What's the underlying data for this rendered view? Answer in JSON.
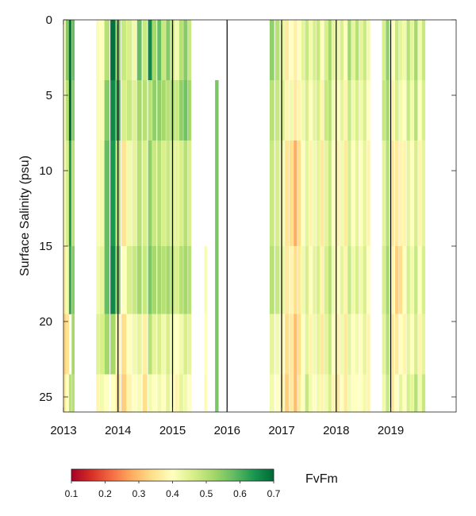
{
  "chart_data": {
    "type": "heatmap",
    "title": "",
    "xlabel": "",
    "ylabel": "Surface Salinity (psu)",
    "x_ticks": [
      "2013",
      "2014",
      "2015",
      "2016",
      "2017",
      "2018",
      "2019"
    ],
    "x_tick_values": [
      2013,
      2014,
      2015,
      2016,
      2017,
      2018,
      2019
    ],
    "xlim": [
      2013,
      2020.2
    ],
    "y_ticks": [
      "0",
      "5",
      "10",
      "15",
      "20",
      "25"
    ],
    "y_tick_values": [
      0,
      5,
      10,
      15,
      20,
      25
    ],
    "ylim": [
      0,
      26
    ],
    "y_reversed": true,
    "year_boundary_lines": [
      2014,
      2015,
      2016,
      2017,
      2018,
      2019
    ],
    "colorbar": {
      "label": "FvFm",
      "min": 0.1,
      "max": 0.7,
      "ticks": [
        "0.1",
        "0.2",
        "0.3",
        "0.4",
        "0.5",
        "0.6",
        "0.7"
      ],
      "colormap": [
        "#a50026",
        "#d73027",
        "#f46d43",
        "#fdae61",
        "#fee08b",
        "#ffffbf",
        "#d9ef8b",
        "#a6d96a",
        "#66bd63",
        "#1a9850",
        "#006837"
      ]
    },
    "salinity_bins": [
      0,
      4,
      8,
      15,
      19.5,
      23.5,
      26
    ],
    "columns": [
      {
        "t": 2013.0,
        "w": 0.04,
        "v": [
          0.4,
          0.4,
          0.39,
          0.36,
          0.32,
          0.35
        ]
      },
      {
        "t": 2013.04,
        "w": 0.06,
        "v": [
          0.55,
          0.5,
          0.46,
          0.42,
          0.35,
          0.4
        ]
      },
      {
        "t": 2013.1,
        "w": 0.04,
        "v": [
          0.69,
          0.7,
          0.64,
          0.62,
          null,
          0.5
        ]
      },
      {
        "t": 2013.15,
        "w": 0.05,
        "v": [
          0.58,
          0.55,
          0.5,
          0.55,
          0.52,
          0.5
        ]
      },
      {
        "t": 2013.6,
        "w": 0.05,
        "v": [
          0.41,
          0.41,
          0.41,
          0.42,
          0.45,
          0.38
        ]
      },
      {
        "t": 2013.66,
        "w": 0.08,
        "v": [
          0.4,
          0.41,
          0.42,
          0.44,
          0.46,
          0.42
        ]
      },
      {
        "t": 2013.75,
        "w": 0.09,
        "v": [
          0.5,
          0.55,
          0.58,
          0.58,
          0.52,
          0.4
        ]
      },
      {
        "t": 2013.86,
        "w": 0.09,
        "v": [
          0.69,
          0.66,
          0.64,
          0.66,
          0.52,
          0.4
        ]
      },
      {
        "t": 2013.96,
        "w": 0.08,
        "v": [
          0.55,
          0.6,
          0.5,
          0.55,
          0.38,
          0.35
        ]
      },
      {
        "t": 2014.06,
        "w": 0.09,
        "v": [
          0.48,
          0.46,
          0.35,
          0.4,
          0.34,
          0.32
        ]
      },
      {
        "t": 2014.16,
        "w": 0.09,
        "v": [
          0.46,
          0.48,
          0.42,
          0.46,
          0.4,
          0.38
        ]
      },
      {
        "t": 2014.26,
        "w": 0.08,
        "v": [
          0.42,
          0.45,
          0.44,
          0.48,
          0.42,
          0.4
        ]
      },
      {
        "t": 2014.35,
        "w": 0.08,
        "v": [
          0.58,
          0.52,
          0.5,
          0.52,
          0.44,
          0.41
        ]
      },
      {
        "t": 2014.45,
        "w": 0.08,
        "v": [
          0.48,
          0.5,
          0.46,
          0.48,
          0.37,
          0.34
        ]
      },
      {
        "t": 2014.55,
        "w": 0.07,
        "v": [
          0.66,
          0.5,
          0.54,
          0.56,
          0.5,
          0.42
        ]
      },
      {
        "t": 2014.63,
        "w": 0.07,
        "v": [
          0.52,
          0.54,
          0.48,
          0.52,
          0.44,
          0.4
        ]
      },
      {
        "t": 2014.72,
        "w": 0.07,
        "v": [
          0.58,
          0.54,
          0.5,
          0.52,
          0.46,
          0.42
        ]
      },
      {
        "t": 2014.8,
        "w": 0.07,
        "v": [
          0.48,
          0.52,
          0.46,
          0.5,
          0.42,
          0.4
        ]
      },
      {
        "t": 2014.88,
        "w": 0.07,
        "v": [
          0.55,
          0.5,
          0.48,
          0.52,
          0.46,
          0.44
        ]
      },
      {
        "t": 2014.96,
        "w": 0.07,
        "v": [
          0.48,
          0.52,
          0.46,
          0.5,
          0.42,
          0.4
        ]
      },
      {
        "t": 2015.04,
        "w": 0.07,
        "v": [
          0.42,
          0.48,
          0.44,
          0.46,
          0.4,
          0.38
        ]
      },
      {
        "t": 2015.12,
        "w": 0.07,
        "v": [
          0.5,
          0.54,
          0.46,
          0.5,
          0.42,
          0.44
        ]
      },
      {
        "t": 2015.2,
        "w": 0.07,
        "v": [
          0.55,
          0.57,
          0.5,
          0.52,
          0.46,
          0.42
        ]
      },
      {
        "t": 2015.28,
        "w": 0.06,
        "v": [
          0.48,
          0.52,
          0.46,
          0.5,
          0.44,
          0.4
        ]
      },
      {
        "t": 2015.58,
        "w": 0.05,
        "v": [
          null,
          null,
          null,
          0.41,
          0.4,
          0.39
        ]
      },
      {
        "t": 2015.78,
        "w": 0.06,
        "v": [
          null,
          0.56,
          0.56,
          0.56,
          0.56,
          0.56
        ]
      },
      {
        "t": 2016.78,
        "w": 0.08,
        "v": [
          0.54,
          0.5,
          0.48,
          0.5,
          0.44,
          0.42
        ]
      },
      {
        "t": 2016.88,
        "w": 0.08,
        "v": [
          0.5,
          0.48,
          0.46,
          0.48,
          0.42,
          0.4
        ]
      },
      {
        "t": 2016.98,
        "w": 0.07,
        "v": [
          0.44,
          0.46,
          0.42,
          0.44,
          0.4,
          0.38
        ]
      },
      {
        "t": 2017.06,
        "w": 0.07,
        "v": [
          0.36,
          0.38,
          0.35,
          0.36,
          0.34,
          0.32
        ]
      },
      {
        "t": 2017.14,
        "w": 0.07,
        "v": [
          0.4,
          0.42,
          0.34,
          0.38,
          0.36,
          0.36
        ]
      },
      {
        "t": 2017.22,
        "w": 0.06,
        "v": [
          0.37,
          0.36,
          0.28,
          0.34,
          0.3,
          0.3
        ]
      },
      {
        "t": 2017.29,
        "w": 0.06,
        "v": [
          0.4,
          0.38,
          0.34,
          0.36,
          0.34,
          0.36
        ]
      },
      {
        "t": 2017.36,
        "w": 0.06,
        "v": [
          0.44,
          0.42,
          0.4,
          0.42,
          0.4,
          0.4
        ]
      },
      {
        "t": 2017.43,
        "w": 0.06,
        "v": [
          0.48,
          0.46,
          0.44,
          0.46,
          0.44,
          0.48
        ]
      },
      {
        "t": 2017.5,
        "w": 0.06,
        "v": [
          0.42,
          0.4,
          0.38,
          0.4,
          0.38,
          0.42
        ]
      },
      {
        "t": 2017.57,
        "w": 0.06,
        "v": [
          0.46,
          0.44,
          0.42,
          0.44,
          0.42,
          0.4
        ]
      },
      {
        "t": 2017.64,
        "w": 0.06,
        "v": [
          0.48,
          0.46,
          0.44,
          0.46,
          0.44,
          0.42
        ]
      },
      {
        "t": 2017.71,
        "w": 0.06,
        "v": [
          0.4,
          0.38,
          0.36,
          0.38,
          0.36,
          0.38
        ]
      },
      {
        "t": 2017.78,
        "w": 0.06,
        "v": [
          0.46,
          0.48,
          0.44,
          0.46,
          0.44,
          0.42
        ]
      },
      {
        "t": 2017.85,
        "w": 0.06,
        "v": [
          0.52,
          0.5,
          0.48,
          0.5,
          0.48,
          0.46
        ]
      },
      {
        "t": 2017.92,
        "w": 0.06,
        "v": [
          0.44,
          0.42,
          0.4,
          0.42,
          0.4,
          0.38
        ]
      },
      {
        "t": 2018.0,
        "w": 0.06,
        "v": [
          0.42,
          0.4,
          0.38,
          0.4,
          0.38,
          0.36
        ]
      },
      {
        "t": 2018.07,
        "w": 0.06,
        "v": [
          0.46,
          0.44,
          0.42,
          0.44,
          0.42,
          0.4
        ]
      },
      {
        "t": 2018.14,
        "w": 0.06,
        "v": [
          0.4,
          0.38,
          0.36,
          0.38,
          0.36,
          0.36
        ]
      },
      {
        "t": 2018.21,
        "w": 0.06,
        "v": [
          0.52,
          0.48,
          0.46,
          0.48,
          0.44,
          0.42
        ]
      },
      {
        "t": 2018.28,
        "w": 0.06,
        "v": [
          0.44,
          0.42,
          0.4,
          0.42,
          0.4,
          0.4
        ]
      },
      {
        "t": 2018.35,
        "w": 0.06,
        "v": [
          0.5,
          0.46,
          0.44,
          0.46,
          0.42,
          0.4
        ]
      },
      {
        "t": 2018.42,
        "w": 0.06,
        "v": [
          0.44,
          0.42,
          0.4,
          0.42,
          0.4,
          0.4
        ]
      },
      {
        "t": 2018.49,
        "w": 0.06,
        "v": [
          0.48,
          0.46,
          0.44,
          0.46,
          0.44,
          0.42
        ]
      },
      {
        "t": 2018.56,
        "w": 0.06,
        "v": [
          0.42,
          0.4,
          0.38,
          0.4,
          0.38,
          0.38
        ]
      },
      {
        "t": 2018.84,
        "w": 0.06,
        "v": [
          0.46,
          0.48,
          0.44,
          0.46,
          0.44,
          0.42
        ]
      },
      {
        "t": 2018.91,
        "w": 0.06,
        "v": [
          0.54,
          0.52,
          0.5,
          0.52,
          0.5,
          0.48
        ]
      },
      {
        "t": 2019.0,
        "w": 0.06,
        "v": [
          0.4,
          0.38,
          0.36,
          0.38,
          0.36,
          0.36
        ]
      },
      {
        "t": 2019.08,
        "w": 0.06,
        "v": [
          0.48,
          0.46,
          0.36,
          0.32,
          0.36,
          0.4
        ]
      },
      {
        "t": 2019.15,
        "w": 0.06,
        "v": [
          0.44,
          0.42,
          0.38,
          0.34,
          0.4,
          0.44
        ]
      },
      {
        "t": 2019.22,
        "w": 0.06,
        "v": [
          0.42,
          0.4,
          0.38,
          0.4,
          0.38,
          0.4
        ]
      },
      {
        "t": 2019.29,
        "w": 0.06,
        "v": [
          0.5,
          0.48,
          0.44,
          0.46,
          0.44,
          0.46
        ]
      },
      {
        "t": 2019.36,
        "w": 0.06,
        "v": [
          0.44,
          0.42,
          0.4,
          0.42,
          0.4,
          0.44
        ]
      },
      {
        "t": 2019.43,
        "w": 0.06,
        "v": [
          0.52,
          0.5,
          0.46,
          0.48,
          0.46,
          0.5
        ]
      },
      {
        "t": 2019.5,
        "w": 0.06,
        "v": [
          0.42,
          0.4,
          0.38,
          0.4,
          0.38,
          0.42
        ]
      },
      {
        "t": 2019.57,
        "w": 0.06,
        "v": [
          0.48,
          0.46,
          0.44,
          0.46,
          0.44,
          0.48
        ]
      }
    ]
  }
}
